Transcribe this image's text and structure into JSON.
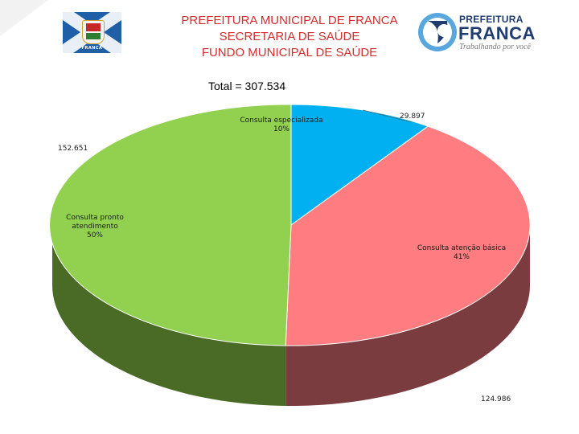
{
  "header": {
    "line1": "PREFEITURA MUNICIPAL DE FRANCA",
    "line2": "SECRETARIA DE SAÚDE",
    "line3": "FUNDO MUNICIPAL DE SAÚDE"
  },
  "flag": {
    "text": "FRANCA",
    "icon": "municipal-flag"
  },
  "logo": {
    "top": "PREFEITURA",
    "main": "FRANCA",
    "slogan": "Trabalhando por você",
    "icon": "prefeitura-logo-mark"
  },
  "colors": {
    "header_text": "#d12e2e",
    "especializada": "#00b0f0",
    "atencao_basica": "#ff7c80",
    "pronto_atendimento": "#92d050"
  },
  "chart_data": {
    "type": "pie",
    "style": "3d",
    "title": "Total = 307.534",
    "slices": [
      {
        "name": "Consulta especializada",
        "value": 29897,
        "value_label": "29.897",
        "percent_label": "10%"
      },
      {
        "name": "Consulta atenção básica",
        "value": 124986,
        "value_label": "124.986",
        "percent_label": "41%"
      },
      {
        "name": "Consulta pronto atendimento",
        "name_line1": "Consulta pronto",
        "name_line2": "atendimento",
        "value": 152651,
        "value_label": "152.651",
        "percent_label": "50%"
      }
    ]
  }
}
